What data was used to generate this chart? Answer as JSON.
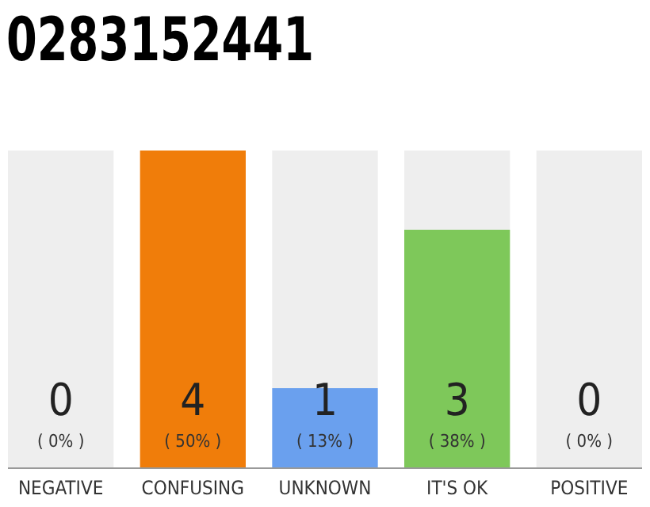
{
  "chart_data": {
    "type": "bar",
    "title": "0283152441",
    "categories": [
      "NEGATIVE",
      "CONFUSING",
      "UNKNOWN",
      "IT'S OK",
      "POSITIVE"
    ],
    "stacked": true,
    "series": [
      {
        "colors": [
          "#cccccc",
          "#f07d0a",
          "#6aa0ee",
          "#7ec85a",
          "#cccccc"
        ],
        "values": [
          0,
          4,
          1,
          3,
          0
        ],
        "value_labels": [
          null,
          "4",
          "1",
          "3",
          null
        ]
      },
      {
        "color": "#eeeeee",
        "values": [
          4,
          0,
          3,
          1,
          4
        ]
      }
    ],
    "ylim": [
      0,
      4
    ],
    "annotations": [
      "0",
      "( 0% )",
      "( 50% )",
      "( 13% )",
      "( 38% )",
      "0",
      "( 0% )"
    ]
  }
}
